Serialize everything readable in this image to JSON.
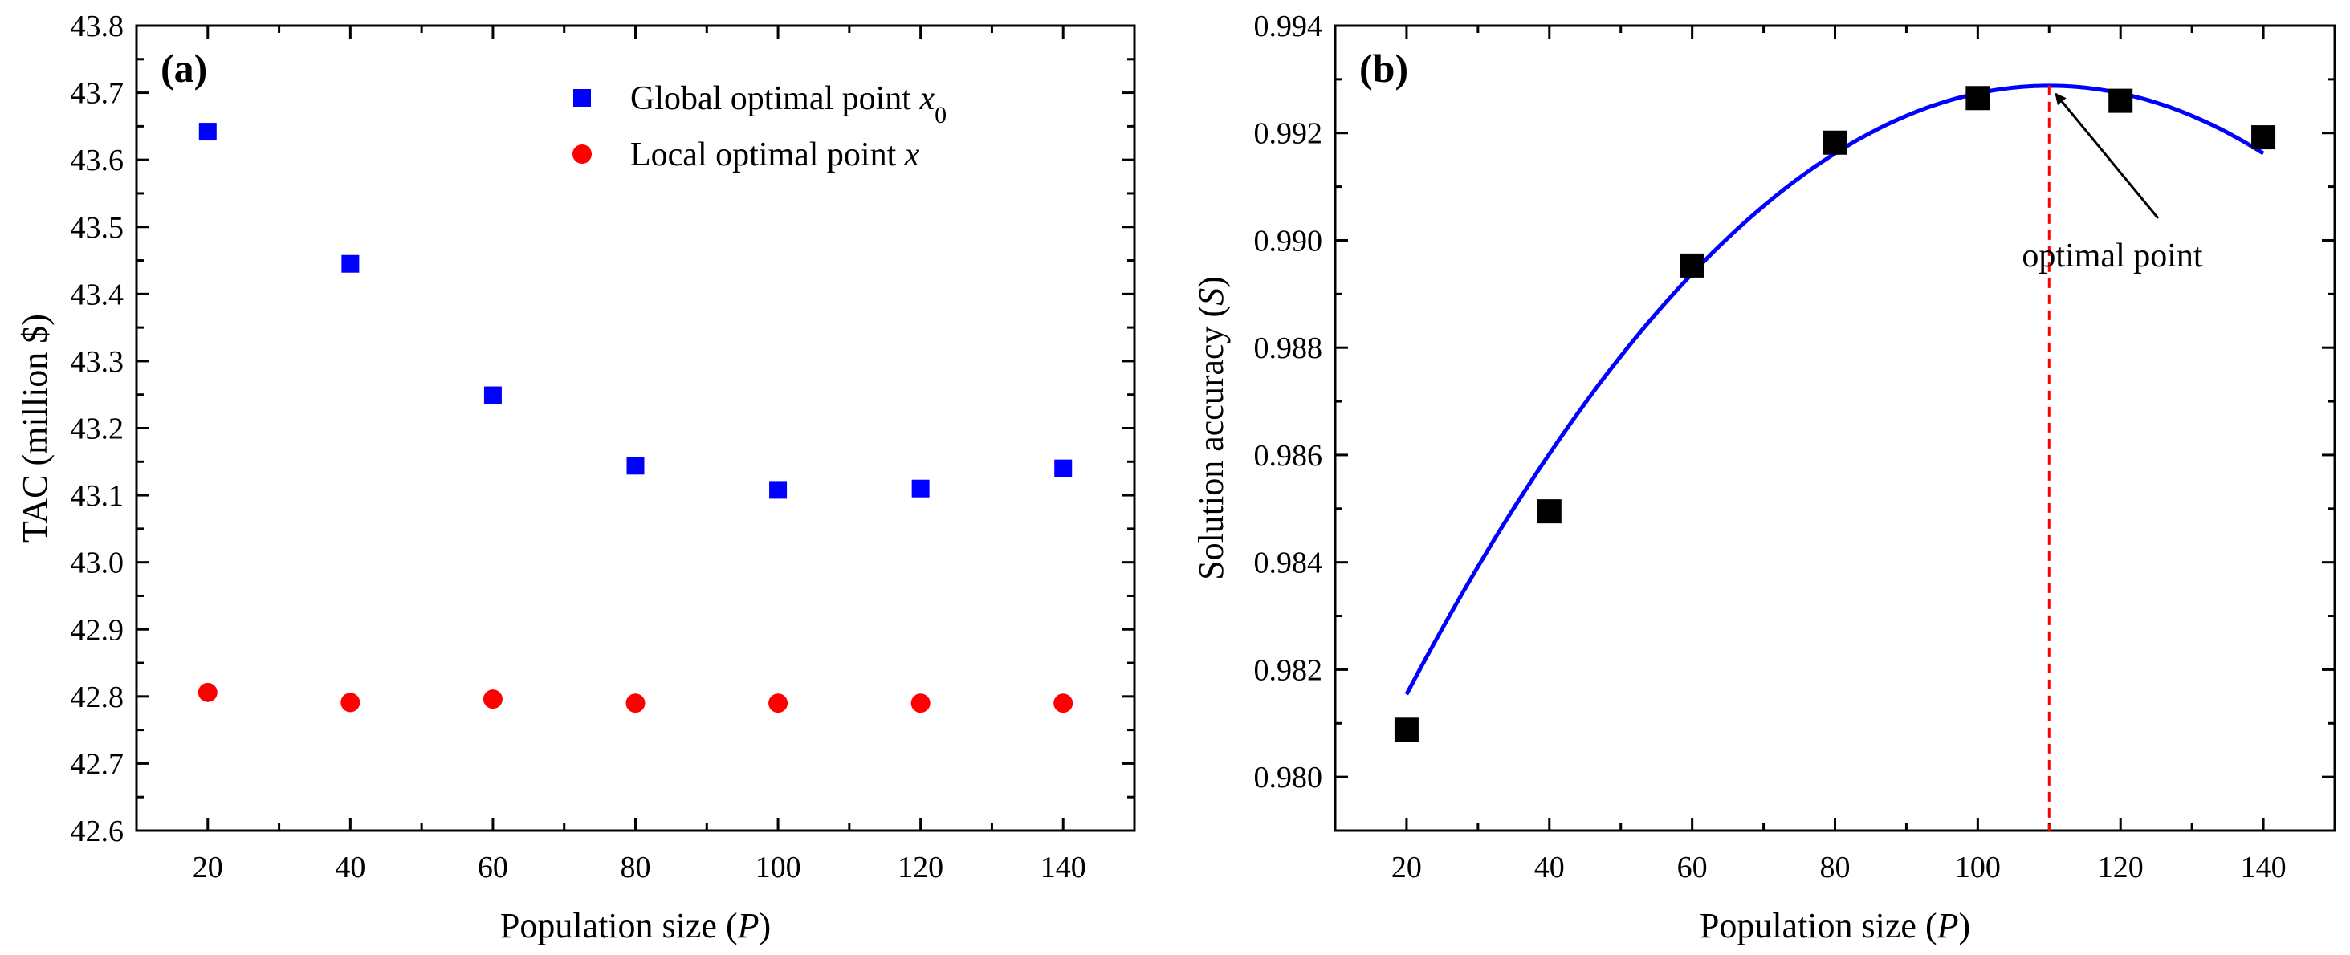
{
  "chart_data": [
    {
      "panel": "(a)",
      "type": "scatter",
      "xlabel": "Population size (P)",
      "xlabel_parts": {
        "before": "Population size (",
        "var": "P",
        "after": ")"
      },
      "ylabel": "TAC (million $)",
      "xlim": [
        10,
        150
      ],
      "ylim": [
        42.6,
        43.8
      ],
      "xticks": [
        20,
        40,
        60,
        80,
        100,
        120,
        140
      ],
      "xtick_labels": [
        "20",
        "40",
        "60",
        "80",
        "100",
        "120",
        "140"
      ],
      "yticks": [
        42.6,
        42.7,
        42.8,
        42.9,
        43.0,
        43.1,
        43.2,
        43.3,
        43.4,
        43.5,
        43.6,
        43.7,
        43.8
      ],
      "ytick_labels": [
        "42.6",
        "42.7",
        "42.8",
        "42.9",
        "43.0",
        "43.1",
        "43.2",
        "43.3",
        "43.4",
        "43.5",
        "43.6",
        "43.7",
        "43.8"
      ],
      "legend_position": "top-right",
      "series": [
        {
          "name": "Global optimal point x0",
          "legend_parts": {
            "text": "Global optimal point ",
            "var": "x",
            "sub": "0"
          },
          "marker": "square",
          "color": "#0000ff",
          "x": [
            20,
            40,
            60,
            80,
            100,
            120,
            140
          ],
          "y": [
            43.642,
            43.445,
            43.249,
            43.144,
            43.108,
            43.11,
            43.14
          ]
        },
        {
          "name": "Local optimal point x",
          "legend_parts": {
            "text": "Local optimal point ",
            "var": "x",
            "sub": ""
          },
          "marker": "circle",
          "color": "#ff0000",
          "x": [
            20,
            40,
            60,
            80,
            100,
            120,
            140
          ],
          "y": [
            42.806,
            42.791,
            42.796,
            42.79,
            42.79,
            42.79,
            42.79
          ]
        }
      ]
    },
    {
      "panel": "(b)",
      "type": "scatter",
      "xlabel": "Population size (P)",
      "xlabel_parts": {
        "before": "Population size (",
        "var": "P",
        "after": ")"
      },
      "ylabel": "Solution accuracy (S)",
      "ylabel_parts": {
        "before": "Solution accuracy (",
        "var": "S",
        "after": ")"
      },
      "xlim": [
        10,
        150
      ],
      "ylim": [
        0.979,
        0.994
      ],
      "xticks": [
        20,
        40,
        60,
        80,
        100,
        120,
        140
      ],
      "xtick_labels": [
        "20",
        "40",
        "60",
        "80",
        "100",
        "120",
        "140"
      ],
      "yticks": [
        0.98,
        0.982,
        0.984,
        0.986,
        0.988,
        0.99,
        0.992,
        0.994
      ],
      "ytick_labels": [
        "0.980",
        "0.982",
        "0.984",
        "0.986",
        "0.988",
        "0.990",
        "0.992",
        "0.994"
      ],
      "series": [
        {
          "name": "Solution accuracy",
          "marker": "square",
          "color": "#000000",
          "x": [
            20,
            40,
            60,
            80,
            100,
            120,
            140
          ],
          "y": [
            0.98088,
            0.98495,
            0.98953,
            0.99182,
            0.99265,
            0.9926,
            0.99192
          ]
        }
      ],
      "fit_curve": {
        "type": "quadratic",
        "color": "#0000ff",
        "vertex_x": 110,
        "vertex_y": 0.99288,
        "a": -1.4e-06,
        "x_range": [
          20,
          140
        ]
      },
      "reference_line": {
        "x": 110,
        "color": "#ff0000",
        "style": "dashed"
      },
      "annotation": {
        "text": "optimal point",
        "point_x": 110,
        "point_y": 0.99288
      }
    }
  ]
}
